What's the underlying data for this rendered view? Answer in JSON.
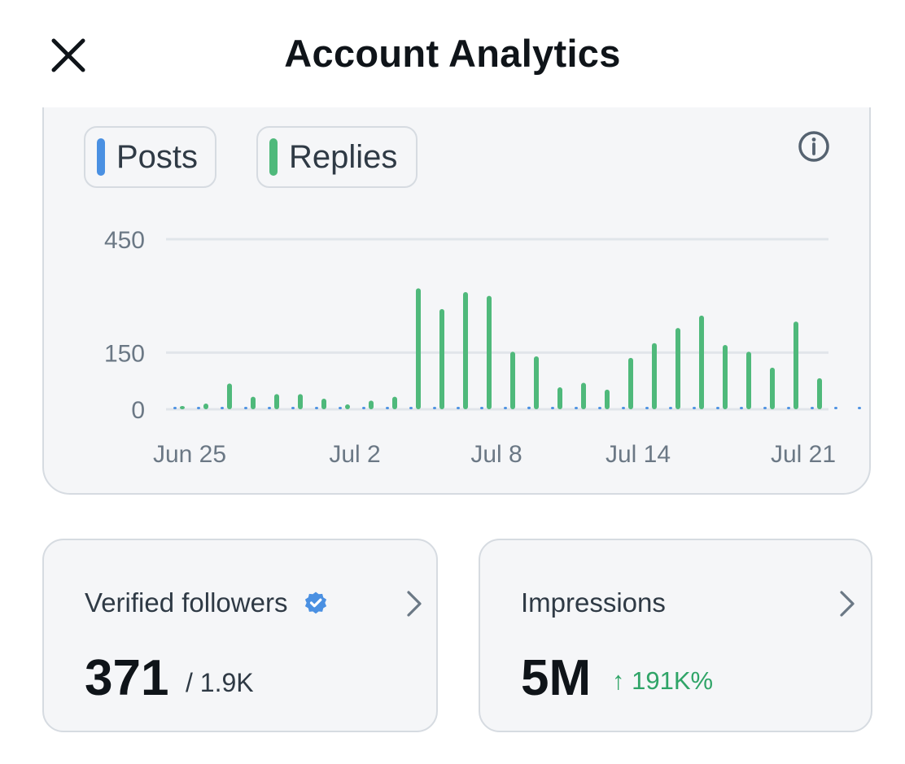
{
  "header": {
    "title": "Account Analytics"
  },
  "legend": [
    {
      "label": "Posts",
      "color": "#4a90e2"
    },
    {
      "label": "Replies",
      "color": "#4fb97b"
    }
  ],
  "chart_data": {
    "type": "bar",
    "y_ticks": [
      "450",
      "150",
      "0"
    ],
    "x_tick_labels": [
      "Jun 25",
      "Jul 2",
      "Jul 8",
      "Jul 14",
      "Jul 21"
    ],
    "ylim": [
      0,
      450
    ],
    "categories": [
      "Jun 24",
      "Jun 25",
      "Jun 26",
      "Jun 27",
      "Jun 28",
      "Jun 29",
      "Jun 30",
      "Jul 1",
      "Jul 2",
      "Jul 3",
      "Jul 4",
      "Jul 5",
      "Jul 6",
      "Jul 7",
      "Jul 8",
      "Jul 9",
      "Jul 10",
      "Jul 11",
      "Jul 12",
      "Jul 13",
      "Jul 14",
      "Jul 15",
      "Jul 16",
      "Jul 17",
      "Jul 18",
      "Jul 19",
      "Jul 20",
      "Jul 21",
      "Jul 22",
      "Jul 23"
    ],
    "series": [
      {
        "name": "Posts",
        "color": "#4a90e2",
        "values": [
          2,
          3,
          3,
          4,
          3,
          3,
          4,
          5,
          4,
          4,
          3,
          3,
          6,
          3,
          5,
          7,
          3,
          4,
          3,
          4,
          4,
          3,
          4,
          5,
          3,
          4,
          3,
          2,
          3,
          2
        ]
      },
      {
        "name": "Replies",
        "color": "#4fb97b",
        "values": [
          8,
          15,
          68,
          33,
          40,
          40,
          28,
          13,
          23,
          33,
          320,
          265,
          310,
          300,
          152,
          140,
          58,
          70,
          52,
          136,
          175,
          215,
          248,
          170,
          152,
          110,
          232,
          82,
          0,
          0
        ]
      }
    ],
    "grid": true
  },
  "stats": {
    "followers": {
      "label": "Verified followers",
      "value": "371",
      "sub": "/ 1.9K",
      "icon": "verified-badge-icon"
    },
    "impressions": {
      "label": "Impressions",
      "value": "5M",
      "change": "↑ 191K%"
    }
  }
}
